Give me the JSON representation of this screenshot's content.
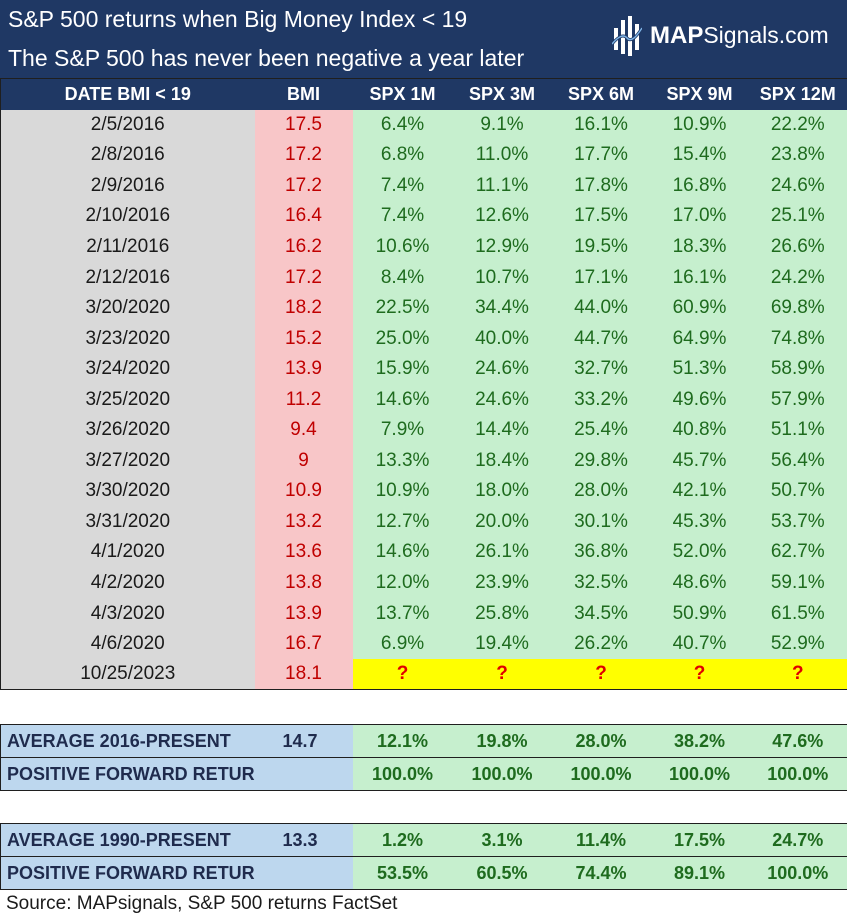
{
  "header": {
    "title_line1": "S&P 500 returns when Big Money Index < 19",
    "title_line2": "The S&P 500 has never been negative a year later",
    "logo_bold": "MAP",
    "logo_rest": "Signals.com"
  },
  "table": {
    "columns": [
      "DATE BMI < 19",
      "BMI",
      "SPX 1M",
      "SPX 3M",
      "SPX 6M",
      "SPX 9M",
      "SPX 12M"
    ],
    "rows": [
      [
        "2/5/2016",
        "17.5",
        "6.4%",
        "9.1%",
        "16.1%",
        "10.9%",
        "22.2%"
      ],
      [
        "2/8/2016",
        "17.2",
        "6.8%",
        "11.0%",
        "17.7%",
        "15.4%",
        "23.8%"
      ],
      [
        "2/9/2016",
        "17.2",
        "7.4%",
        "11.1%",
        "17.8%",
        "16.8%",
        "24.6%"
      ],
      [
        "2/10/2016",
        "16.4",
        "7.4%",
        "12.6%",
        "17.5%",
        "17.0%",
        "25.1%"
      ],
      [
        "2/11/2016",
        "16.2",
        "10.6%",
        "12.9%",
        "19.5%",
        "18.3%",
        "26.6%"
      ],
      [
        "2/12/2016",
        "17.2",
        "8.4%",
        "10.7%",
        "17.1%",
        "16.1%",
        "24.2%"
      ],
      [
        "3/20/2020",
        "18.2",
        "22.5%",
        "34.4%",
        "44.0%",
        "60.9%",
        "69.8%"
      ],
      [
        "3/23/2020",
        "15.2",
        "25.0%",
        "40.0%",
        "44.7%",
        "64.9%",
        "74.8%"
      ],
      [
        "3/24/2020",
        "13.9",
        "15.9%",
        "24.6%",
        "32.7%",
        "51.3%",
        "58.9%"
      ],
      [
        "3/25/2020",
        "11.2",
        "14.6%",
        "24.6%",
        "33.2%",
        "49.6%",
        "57.9%"
      ],
      [
        "3/26/2020",
        "9.4",
        "7.9%",
        "14.4%",
        "25.4%",
        "40.8%",
        "51.1%"
      ],
      [
        "3/27/2020",
        "9",
        "13.3%",
        "18.4%",
        "29.8%",
        "45.7%",
        "56.4%"
      ],
      [
        "3/30/2020",
        "10.9",
        "10.9%",
        "18.0%",
        "28.0%",
        "42.1%",
        "50.7%"
      ],
      [
        "3/31/2020",
        "13.2",
        "12.7%",
        "20.0%",
        "30.1%",
        "45.3%",
        "53.7%"
      ],
      [
        "4/1/2020",
        "13.6",
        "14.6%",
        "26.1%",
        "36.8%",
        "52.0%",
        "62.7%"
      ],
      [
        "4/2/2020",
        "13.8",
        "12.0%",
        "23.9%",
        "32.5%",
        "48.6%",
        "59.1%"
      ],
      [
        "4/3/2020",
        "13.9",
        "13.7%",
        "25.8%",
        "34.5%",
        "50.9%",
        "61.5%"
      ],
      [
        "4/6/2020",
        "16.7",
        "6.9%",
        "19.4%",
        "26.2%",
        "40.7%",
        "52.9%"
      ],
      [
        "10/25/2023",
        "18.1",
        "?",
        "?",
        "?",
        "?",
        "?"
      ]
    ]
  },
  "summary_2016": [
    [
      "AVERAGE 2016-PRESENT",
      "14.7",
      "12.1%",
      "19.8%",
      "28.0%",
      "38.2%",
      "47.6%"
    ],
    [
      "POSITIVE FORWARD RETURNS %",
      "",
      "100.0%",
      "100.0%",
      "100.0%",
      "100.0%",
      "100.0%"
    ]
  ],
  "summary_1990": [
    [
      "AVERAGE 1990-PRESENT",
      "13.3",
      "1.2%",
      "3.1%",
      "11.4%",
      "17.5%",
      "24.7%"
    ],
    [
      "POSITIVE FORWARD RETURNS %",
      "",
      "53.5%",
      "60.5%",
      "74.4%",
      "89.1%",
      "100.0%"
    ]
  ],
  "footer": {
    "source": "Source: MAPsignals, S&P 500 returns FactSet"
  },
  "colors": {
    "header_navy": "#1f3864",
    "date_gray": "#d9d9d9",
    "bmi_pink": "#f8c6c8",
    "return_green": "#c6efce",
    "pending_yellow": "#ffff00",
    "summary_blue": "#bdd7ee"
  },
  "icons": [
    "mapsignals-logo-mark"
  ]
}
